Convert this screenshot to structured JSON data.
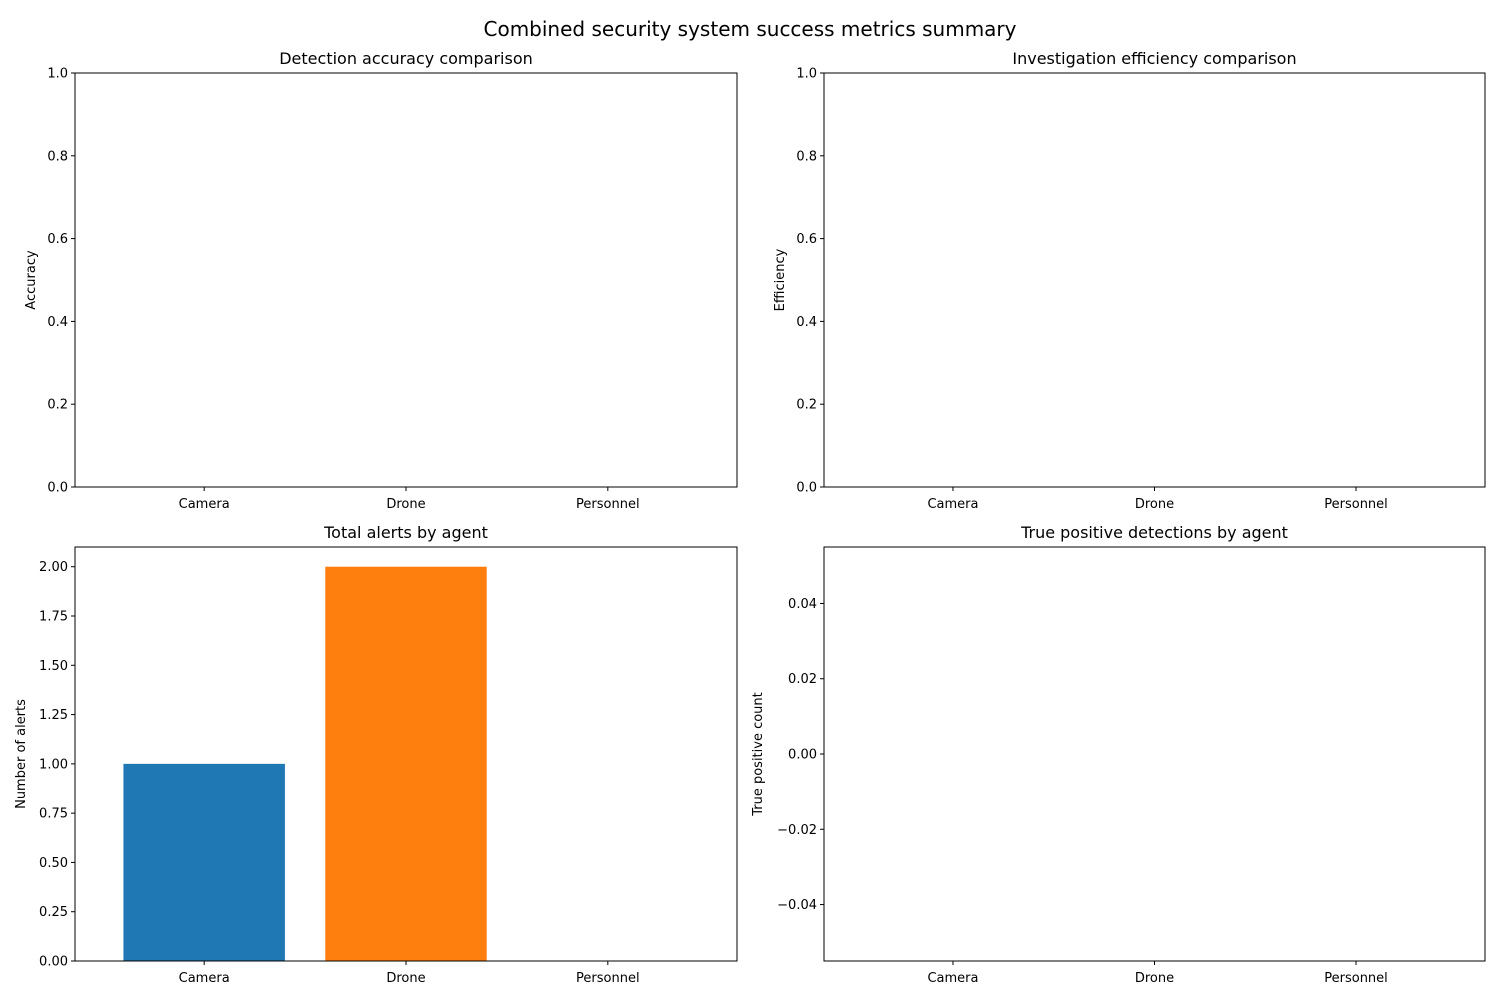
{
  "figure": {
    "suptitle": "Combined security system success metrics summary"
  },
  "chart_data": [
    {
      "type": "bar",
      "title": "Detection accuracy comparison",
      "xlabel": "",
      "ylabel": "Accuracy",
      "categories": [
        "Camera",
        "Drone",
        "Personnel"
      ],
      "values": [
        0,
        0,
        0
      ],
      "ylim": [
        0,
        1
      ],
      "yticks": [
        "0.0",
        "0.2",
        "0.4",
        "0.6",
        "0.8",
        "1.0"
      ],
      "grid": false,
      "colors": [
        "#1f77b4",
        "#ff7f0e",
        "#2ca02c"
      ]
    },
    {
      "type": "bar",
      "title": "Investigation efficiency comparison",
      "xlabel": "",
      "ylabel": "Efficiency",
      "categories": [
        "Camera",
        "Drone",
        "Personnel"
      ],
      "values": [
        0,
        0,
        0
      ],
      "ylim": [
        0,
        1
      ],
      "yticks": [
        "0.0",
        "0.2",
        "0.4",
        "0.6",
        "0.8",
        "1.0"
      ],
      "grid": false,
      "colors": [
        "#1f77b4",
        "#ff7f0e",
        "#2ca02c"
      ]
    },
    {
      "type": "bar",
      "title": "Total alerts by agent",
      "xlabel": "",
      "ylabel": "Number of alerts",
      "categories": [
        "Camera",
        "Drone",
        "Personnel"
      ],
      "values": [
        1,
        2,
        0
      ],
      "ylim": [
        0,
        2.1
      ],
      "yticks": [
        "0.00",
        "0.25",
        "0.50",
        "0.75",
        "1.00",
        "1.25",
        "1.50",
        "1.75",
        "2.00"
      ],
      "grid": false,
      "colors": [
        "#1f77b4",
        "#ff7f0e",
        "#2ca02c"
      ]
    },
    {
      "type": "bar",
      "title": "True positive detections by agent",
      "xlabel": "",
      "ylabel": "True positive count",
      "categories": [
        "Camera",
        "Drone",
        "Personnel"
      ],
      "values": [
        0,
        0,
        0
      ],
      "ylim": [
        -0.055,
        0.055
      ],
      "yticks": [
        "−0.04",
        "−0.02",
        "0.00",
        "0.02",
        "0.04"
      ],
      "grid": false,
      "colors": [
        "#1f77b4",
        "#ff7f0e",
        "#2ca02c"
      ]
    }
  ]
}
